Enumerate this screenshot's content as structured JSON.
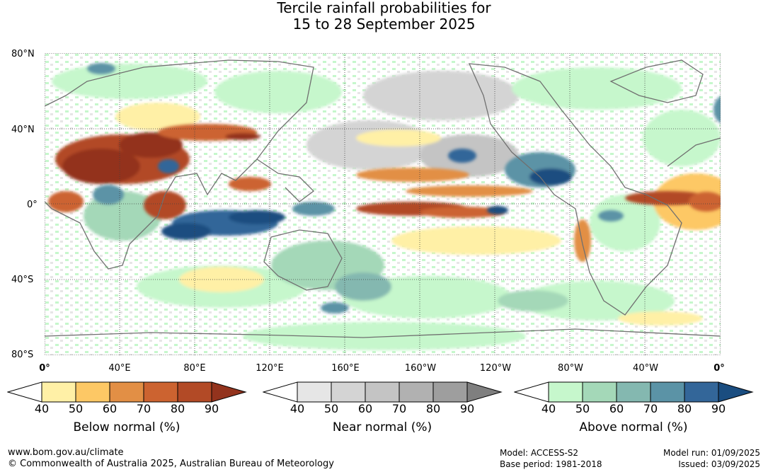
{
  "title": {
    "line1": "Tercile rainfall probabilities for",
    "line2": "15 to 28 September 2025"
  },
  "map": {
    "lat_labels": [
      "80°N",
      "40°N",
      "0°",
      "40°S",
      "80°S"
    ],
    "lon_labels": [
      "0°",
      "40°E",
      "80°E",
      "120°E",
      "160°E",
      "160°W",
      "120°W",
      "80°W",
      "40°W",
      "0°"
    ]
  },
  "legends": [
    {
      "caption": "Below normal (%)",
      "ticks": [
        "40",
        "50",
        "60",
        "70",
        "80",
        "90"
      ],
      "colors": [
        "#ffffff",
        "#fff0a6",
        "#fdc865",
        "#e28f45",
        "#cc6330",
        "#b24a26",
        "#93331d"
      ]
    },
    {
      "caption": "Near normal (%)",
      "ticks": [
        "40",
        "50",
        "60",
        "70",
        "80",
        "90"
      ],
      "colors": [
        "#ffffff",
        "#e6e6e6",
        "#d4d4d4",
        "#c4c4c4",
        "#b1b1b1",
        "#9e9e9e",
        "#7f7f7f"
      ]
    },
    {
      "caption": "Above normal (%)",
      "ticks": [
        "40",
        "50",
        "60",
        "70",
        "80",
        "90"
      ],
      "colors": [
        "#ffffff",
        "#c6f7cc",
        "#a4d8b8",
        "#84b8b0",
        "#5b93a6",
        "#336699",
        "#1a4d80"
      ]
    }
  ],
  "footer": {
    "url": "www.bom.gov.au/climate",
    "copyright": "© Commonwealth of Australia 2025, Australian Bureau of Meteorology",
    "model": "Model: ACCESS-S2",
    "base_period": "Base period: 1981-2018",
    "model_run": "Model run: 01/09/2025",
    "issued": "Issued: 03/09/2025"
  }
}
